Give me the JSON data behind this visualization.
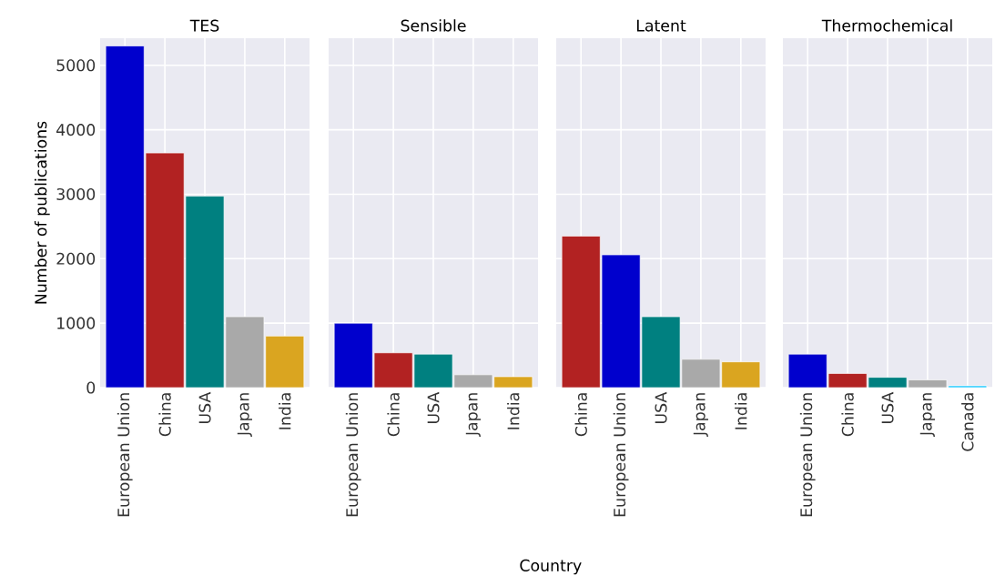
{
  "chart_data": [
    {
      "type": "bar",
      "title": "TES",
      "ylabel": "Number of publications",
      "categories": [
        "European Union",
        "China",
        "USA",
        "Japan",
        "India"
      ],
      "values": [
        5300,
        3640,
        2970,
        1100,
        800
      ],
      "colors": [
        "#0000cd",
        "#b22222",
        "#008080",
        "#a9a9a9",
        "#daa520"
      ],
      "ylim": [
        0,
        5420
      ],
      "yticks": [
        0,
        1000,
        2000,
        3000,
        4000,
        5000
      ],
      "grid": true
    },
    {
      "type": "bar",
      "title": "Sensible",
      "xlabel": "Country",
      "categories": [
        "European Union",
        "China",
        "USA",
        "Japan",
        "India"
      ],
      "values": [
        1000,
        540,
        520,
        200,
        170
      ],
      "colors": [
        "#0000cd",
        "#b22222",
        "#008080",
        "#a9a9a9",
        "#daa520"
      ],
      "ylim": [
        0,
        5420
      ],
      "yticks": [
        0,
        1000,
        2000,
        3000,
        4000,
        5000
      ],
      "grid": true,
      "tick_labels": "x"
    },
    {
      "type": "bar",
      "title": "Latent",
      "categories": [
        "China",
        "European Union",
        "USA",
        "Japan",
        "India"
      ],
      "values": [
        2350,
        2060,
        1100,
        440,
        400
      ],
      "colors": [
        "#b22222",
        "#0000cd",
        "#008080",
        "#a9a9a9",
        "#daa520"
      ],
      "ylim": [
        0,
        5420
      ],
      "yticks": [
        0,
        1000,
        2000,
        3000,
        4000,
        5000
      ],
      "grid": true,
      "tick_labels": "x"
    },
    {
      "type": "bar",
      "title": "Thermochemical",
      "categories": [
        "European Union",
        "China",
        "USA",
        "Japan",
        "Canada"
      ],
      "values": [
        520,
        220,
        160,
        120,
        30
      ],
      "colors": [
        "#0000cd",
        "#b22222",
        "#008080",
        "#a9a9a9",
        "#1ec8ff"
      ],
      "ylim": [
        0,
        5420
      ],
      "yticks": [
        0,
        1000,
        2000,
        3000,
        4000,
        5000
      ],
      "grid": true,
      "tick_labels": "x"
    }
  ]
}
